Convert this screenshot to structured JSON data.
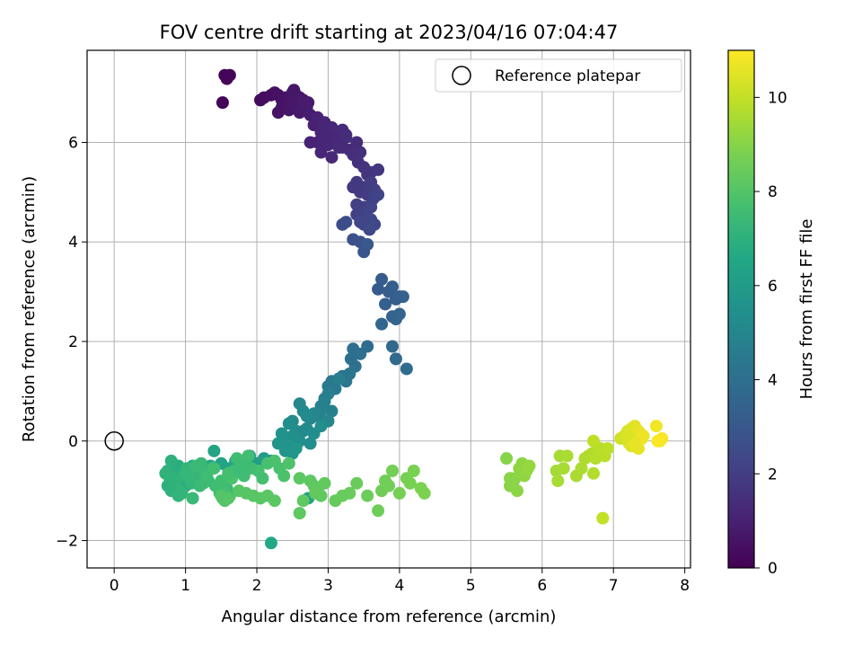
{
  "chart_data": {
    "type": "scatter",
    "title": "FOV centre drift starting at 2023/04/16 07:04:47",
    "xlabel": "Angular distance from reference (arcmin)",
    "ylabel": "Rotation from reference (arcmin)",
    "xlim": [
      -0.38,
      8.08
    ],
    "ylim": [
      -2.55,
      7.85
    ],
    "xticks": [
      "0",
      "1",
      "2",
      "3",
      "4",
      "5",
      "6",
      "7",
      "8"
    ],
    "yticks": [
      "−2",
      "0",
      "2",
      "4",
      "6"
    ],
    "grid": true,
    "legend": {
      "placement": "top-right",
      "label": "Reference platepar"
    },
    "reference_point": {
      "x": 0,
      "y": 0
    },
    "colorbar": {
      "label": "Hours from first FF file",
      "range": [
        0,
        11
      ],
      "ticks": [
        "0",
        "2",
        "4",
        "6",
        "8",
        "10"
      ],
      "colormap": "viridis"
    },
    "series": [
      {
        "x": [
          1.55,
          1.58,
          1.62,
          1.52,
          1.58,
          2.05,
          2.1,
          2.2,
          2.25,
          2.3,
          2.35,
          2.4,
          2.42,
          2.45,
          2.5,
          2.52,
          2.55,
          2.6,
          2.62,
          2.65,
          2.7,
          2.72,
          2.3,
          2.35,
          2.45,
          2.5,
          2.6,
          2.68,
          2.75
        ],
        "y": [
          7.35,
          7.3,
          7.35,
          6.8,
          7.28,
          6.85,
          6.9,
          6.95,
          7.0,
          6.95,
          6.85,
          6.9,
          6.7,
          6.8,
          7.0,
          7.05,
          6.95,
          6.9,
          6.75,
          6.85,
          6.7,
          6.8,
          6.6,
          6.7,
          6.65,
          6.75,
          6.6,
          6.7,
          6.55
        ],
        "t": [
          0.05,
          0.08,
          0.1,
          0.12,
          0.15,
          0.3,
          0.35,
          0.4,
          0.45,
          0.5,
          0.52,
          0.55,
          0.6,
          0.62,
          0.65,
          0.68,
          0.7,
          0.72,
          0.75,
          0.78,
          0.8,
          0.82,
          0.55,
          0.6,
          0.62,
          0.7,
          0.8,
          0.85,
          0.9
        ]
      },
      {
        "x": [
          2.8,
          2.85,
          2.9,
          2.95,
          3.0,
          3.05,
          3.1,
          3.15,
          3.2,
          3.25,
          2.85,
          2.9,
          3.0,
          3.1,
          3.2,
          3.3,
          2.95,
          3.05,
          2.75,
          3.15,
          3.25,
          3.35,
          3.45,
          3.4,
          3.42,
          3.5,
          3.55,
          3.6,
          3.7,
          3.35,
          3.4,
          3.45,
          3.5,
          3.55,
          3.6,
          3.62,
          3.65,
          3.5
        ],
        "y": [
          6.35,
          6.5,
          6.2,
          6.4,
          6.1,
          6.3,
          6.0,
          6.2,
          5.9,
          6.15,
          6.0,
          5.8,
          5.95,
          6.05,
          6.25,
          5.85,
          6.1,
          5.7,
          6.0,
          5.9,
          6.1,
          5.75,
          5.8,
          6.0,
          5.6,
          5.5,
          5.35,
          5.4,
          5.45,
          5.1,
          5.2,
          5.0,
          5.1,
          4.95,
          5.2,
          4.85,
          5.05,
          4.7
        ],
        "t": [
          1.0,
          1.05,
          1.1,
          1.12,
          1.15,
          1.2,
          1.25,
          1.28,
          1.3,
          1.35,
          1.1,
          1.15,
          1.2,
          1.22,
          1.3,
          1.35,
          1.18,
          1.25,
          1.05,
          1.3,
          1.38,
          1.45,
          1.5,
          1.42,
          1.55,
          1.6,
          1.65,
          1.7,
          1.75,
          1.8,
          1.82,
          1.85,
          1.9,
          1.92,
          1.95,
          2.0,
          2.02,
          2.05
        ]
      },
      {
        "x": [
          3.4,
          3.45,
          3.55,
          3.5,
          3.6,
          3.65,
          3.4,
          3.45,
          3.6,
          3.58,
          3.65,
          3.7,
          3.2,
          3.25,
          3.35,
          3.45,
          3.5
        ],
        "y": [
          4.55,
          4.6,
          4.5,
          4.35,
          4.45,
          4.35,
          4.75,
          4.4,
          4.7,
          4.25,
          4.9,
          4.95,
          4.35,
          4.4,
          4.05,
          4.0,
          3.8
        ],
        "t": [
          2.1,
          2.15,
          2.2,
          2.25,
          2.3,
          2.35,
          2.08,
          2.28,
          2.2,
          2.4,
          2.12,
          2.18,
          2.5,
          2.55,
          2.7,
          2.75,
          2.9
        ]
      },
      {
        "x": [
          3.55,
          3.7,
          3.75,
          3.85,
          3.9,
          3.95,
          4.0,
          4.05,
          3.8,
          3.9,
          3.95,
          4.0,
          3.75,
          3.9,
          3.95,
          4.1,
          3.55,
          3.35,
          3.32,
          3.45,
          3.38,
          3.2,
          3.25,
          3.3
        ],
        "y": [
          3.95,
          3.05,
          3.25,
          3.0,
          3.1,
          2.85,
          2.9,
          2.9,
          2.75,
          2.5,
          2.45,
          2.55,
          2.35,
          1.9,
          1.65,
          1.45,
          1.9,
          1.85,
          1.65,
          1.75,
          1.5,
          1.3,
          1.2,
          1.35
        ],
        "t": [
          3.0,
          3.1,
          3.15,
          3.2,
          3.25,
          3.3,
          3.35,
          3.38,
          3.3,
          3.45,
          3.5,
          3.55,
          3.6,
          3.75,
          3.8,
          3.9,
          3.85,
          3.95,
          4.0,
          4.05,
          4.1,
          4.2,
          4.25,
          4.3
        ]
      },
      {
        "x": [
          3.0,
          3.05,
          3.1,
          2.95,
          3.0,
          3.15,
          2.9,
          2.95,
          3.05,
          2.85,
          2.9,
          3.0,
          2.75,
          2.8,
          2.6,
          2.65,
          2.7,
          2.5,
          2.55,
          2.45,
          2.5,
          2.6,
          2.4,
          2.45,
          2.35,
          2.3,
          2.4,
          2.5,
          2.55,
          2.65,
          2.7,
          2.75,
          2.8,
          2.9
        ],
        "y": [
          1.1,
          1.2,
          1.05,
          0.85,
          0.95,
          1.25,
          0.7,
          0.8,
          0.6,
          0.5,
          0.6,
          0.4,
          0.45,
          0.55,
          0.75,
          0.6,
          0.5,
          0.4,
          0.2,
          0.35,
          0.1,
          0.0,
          0.05,
          -0.1,
          0.15,
          -0.05,
          -0.2,
          -0.25,
          -0.15,
          0.2,
          0.25,
          -0.05,
          0.15,
          0.3
        ],
        "t": [
          4.4,
          4.45,
          4.5,
          4.55,
          4.6,
          4.65,
          4.7,
          4.75,
          4.8,
          4.85,
          4.9,
          4.95,
          5.0,
          5.05,
          5.1,
          5.15,
          5.2,
          5.25,
          5.3,
          5.35,
          5.4,
          5.45,
          5.5,
          5.55,
          5.6,
          5.65,
          5.7,
          5.75,
          5.8,
          5.2,
          5.25,
          5.3,
          5.35,
          5.4
        ]
      },
      {
        "x": [
          2.2,
          2.1,
          2.0,
          1.9,
          1.8,
          1.7,
          1.6,
          1.5,
          1.4,
          1.35,
          1.3,
          1.25,
          1.2,
          1.15,
          1.1,
          1.05,
          1.0,
          0.95,
          0.9,
          0.85,
          0.8,
          0.75,
          0.72,
          0.78,
          0.82,
          0.88,
          0.92,
          0.98,
          1.02,
          1.08,
          1.12,
          1.18,
          1.22,
          1.28,
          1.32,
          1.38,
          1.42,
          1.48,
          1.52,
          1.58,
          1.62,
          1.68,
          1.72,
          1.78,
          1.82,
          1.88,
          1.92,
          2.02,
          2.08,
          2.15,
          2.25,
          2.32,
          2.38,
          2.45,
          2.72,
          0.75,
          0.85,
          0.95,
          1.05,
          1.15,
          1.25,
          1.45,
          1.55,
          1.65,
          1.75,
          1.85,
          0.8,
          0.9,
          1.0,
          1.1,
          1.2,
          1.3,
          1.4,
          1.5,
          1.6,
          2.2
        ],
        "y": [
          -0.4,
          -0.35,
          -0.45,
          -0.3,
          -0.5,
          -0.4,
          -0.55,
          -0.45,
          -0.2,
          -0.5,
          -0.65,
          -0.55,
          -0.7,
          -0.6,
          -0.5,
          -0.8,
          -0.9,
          -0.6,
          -0.5,
          -0.7,
          -0.4,
          -0.6,
          -0.65,
          -0.75,
          -0.85,
          -0.95,
          -1.0,
          -0.7,
          -0.55,
          -0.85,
          -0.6,
          -0.75,
          -0.45,
          -0.65,
          -0.8,
          -0.55,
          -0.9,
          -1.05,
          -1.15,
          -0.95,
          -1.1,
          -0.6,
          -0.35,
          -0.5,
          -0.7,
          -0.3,
          -0.55,
          -0.6,
          -0.75,
          -0.45,
          -0.4,
          -0.55,
          -0.7,
          -0.45,
          -1.15,
          -0.9,
          -0.8,
          -1.05,
          -0.7,
          -0.5,
          -0.85,
          -0.9,
          -1.05,
          -0.75,
          -0.6,
          -0.5,
          -1.0,
          -1.1,
          -0.65,
          -1.15,
          -0.9,
          -0.7,
          -0.55,
          -0.8,
          -0.65,
          -2.05
        ],
        "t": [
          6.0,
          6.05,
          6.1,
          6.15,
          6.2,
          6.25,
          6.3,
          6.35,
          6.4,
          6.45,
          6.5,
          6.55,
          6.6,
          6.65,
          6.7,
          6.75,
          6.8,
          6.85,
          6.9,
          6.95,
          7.0,
          7.02,
          7.05,
          7.08,
          7.1,
          7.12,
          7.15,
          7.18,
          7.2,
          7.22,
          7.25,
          7.28,
          7.3,
          7.32,
          7.35,
          7.38,
          7.4,
          7.42,
          7.45,
          7.48,
          7.5,
          7.52,
          7.55,
          7.58,
          7.6,
          7.62,
          7.65,
          7.7,
          7.72,
          7.75,
          7.8,
          7.82,
          7.85,
          7.9,
          6.3,
          7.0,
          7.1,
          7.2,
          7.3,
          7.4,
          7.5,
          7.6,
          7.7,
          7.8,
          7.5,
          7.55,
          7.05,
          7.15,
          7.25,
          7.35,
          7.45,
          7.55,
          7.65,
          7.6,
          7.7,
          6.6
        ]
      },
      {
        "x": [
          1.5,
          1.55,
          1.6,
          1.75,
          1.85,
          1.95,
          2.05,
          2.15,
          2.25,
          2.6,
          2.65,
          2.75,
          2.8,
          2.85,
          2.9,
          2.95,
          2.82,
          3.1,
          3.2,
          3.3,
          3.4,
          3.55,
          3.7,
          3.75,
          3.8,
          3.85,
          3.9,
          4.0,
          4.1,
          4.15,
          4.2,
          4.3,
          4.35,
          2.6
        ],
        "y": [
          -1.1,
          -1.2,
          -1.15,
          -1.0,
          -1.05,
          -1.1,
          -1.15,
          -1.1,
          -1.2,
          -0.75,
          -1.2,
          -0.8,
          -0.9,
          -1.0,
          -1.1,
          -0.85,
          -1.05,
          -1.2,
          -1.1,
          -1.05,
          -0.85,
          -1.1,
          -1.4,
          -1.0,
          -0.8,
          -0.9,
          -0.6,
          -1.05,
          -0.75,
          -0.85,
          -0.6,
          -0.95,
          -1.05,
          -1.45
        ],
        "t": [
          8.0,
          8.02,
          8.04,
          8.06,
          8.08,
          8.1,
          8.12,
          8.14,
          8.16,
          8.2,
          8.22,
          8.24,
          8.26,
          8.28,
          8.3,
          8.32,
          8.34,
          8.4,
          8.42,
          8.44,
          8.46,
          8.5,
          8.55,
          8.58,
          8.6,
          8.62,
          8.65,
          8.7,
          8.72,
          8.75,
          8.78,
          8.8,
          8.82,
          8.25
        ]
      },
      {
        "x": [
          5.5,
          5.55,
          5.58,
          5.62,
          5.65,
          5.68,
          5.72,
          5.75,
          5.78,
          5.82,
          5.6,
          5.7,
          5.55,
          5.8
        ],
        "y": [
          -0.35,
          -0.9,
          -0.85,
          -0.75,
          -1.0,
          -0.55,
          -0.45,
          -0.7,
          -0.6,
          -0.5,
          -0.8,
          -0.65,
          -0.75,
          -0.55
        ],
        "t": [
          9.0,
          9.02,
          9.05,
          9.08,
          9.1,
          9.12,
          9.15,
          9.18,
          9.2,
          9.22,
          9.06,
          9.14,
          9.04,
          9.25
        ]
      },
      {
        "x": [
          6.2,
          6.25,
          6.3,
          6.35,
          6.48,
          6.55,
          6.6,
          6.65,
          6.7,
          6.72,
          6.75,
          6.78,
          6.82,
          6.85,
          6.88,
          6.92,
          6.22
        ],
        "y": [
          -0.6,
          -0.3,
          -0.55,
          -0.3,
          -0.7,
          -0.55,
          -0.35,
          -0.3,
          -0.25,
          -0.65,
          -0.35,
          -0.2,
          -0.15,
          -0.2,
          -0.3,
          -0.15,
          -0.8
        ],
        "t": [
          9.5,
          9.52,
          9.55,
          9.58,
          9.6,
          9.62,
          9.65,
          9.68,
          9.7,
          9.72,
          9.75,
          9.78,
          9.8,
          9.82,
          9.85,
          9.88,
          9.55
        ]
      },
      {
        "x": [
          6.72,
          6.85,
          7.1,
          7.15,
          7.2,
          7.22,
          7.25,
          7.28,
          7.3,
          7.32,
          7.35,
          7.38,
          7.4,
          7.25,
          7.35,
          7.42,
          7.6,
          7.65,
          7.68,
          7.62,
          7.2,
          7.3
        ],
        "y": [
          0.0,
          -1.55,
          0.05,
          0.1,
          0.2,
          -0.05,
          0.25,
          0.0,
          0.3,
          0.1,
          -0.15,
          0.15,
          0.05,
          -0.1,
          0.2,
          0.1,
          0.3,
          0.0,
          0.05,
          0.0,
          0.1,
          -0.05
        ],
        "t": [
          9.9,
          10.0,
          10.2,
          10.25,
          10.3,
          10.35,
          10.4,
          10.45,
          10.5,
          10.55,
          10.6,
          10.65,
          10.7,
          10.5,
          10.6,
          10.7,
          10.8,
          10.85,
          10.9,
          10.95,
          10.4,
          10.6
        ]
      }
    ]
  }
}
